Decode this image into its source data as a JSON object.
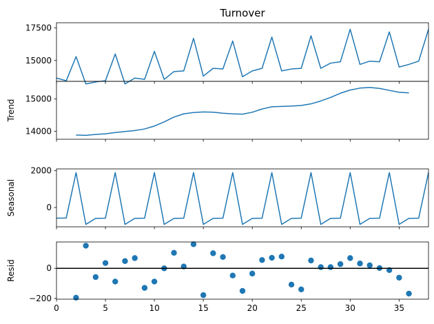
{
  "figure_title": "Turnover",
  "chart_data": [
    {
      "type": "line",
      "ylabel": "",
      "xlim": [
        0,
        38
      ],
      "ylim": [
        13400,
        17900
      ],
      "yticks": [
        17500,
        15000
      ],
      "ytick_labels": [
        "17500",
        "15000"
      ],
      "color": "#1f77b4",
      "series": [
        {
          "x": [
            0,
            1,
            2,
            3,
            4,
            5,
            6,
            7,
            8,
            9,
            10,
            11,
            12,
            13,
            14,
            15,
            16,
            17,
            18,
            19,
            20,
            21,
            22,
            23,
            24,
            25,
            26,
            27,
            28,
            29,
            30,
            31,
            32,
            33,
            34,
            35,
            36,
            37,
            38
          ],
          "values": [
            13650,
            13450,
            15300,
            13200,
            13350,
            13450,
            15500,
            13200,
            13650,
            13550,
            15700,
            13550,
            14150,
            14200,
            16700,
            13800,
            14400,
            14350,
            16500,
            13750,
            14200,
            14400,
            16800,
            14200,
            14350,
            14400,
            16900,
            14400,
            14800,
            14900,
            17400,
            14700,
            14950,
            14900,
            17200,
            14500,
            14700,
            14950,
            17400
          ]
        }
      ]
    },
    {
      "type": "line",
      "ylabel": "Trend",
      "xlim": [
        0,
        38
      ],
      "ylim": [
        13750,
        15550
      ],
      "yticks": [
        15000,
        14000
      ],
      "ytick_labels": [
        "15000",
        "14000"
      ],
      "color": "#1f77b4",
      "series": [
        {
          "x": [
            2,
            3,
            4,
            5,
            6,
            7,
            8,
            9,
            10,
            11,
            12,
            13,
            14,
            15,
            16,
            17,
            18,
            19,
            20,
            21,
            22,
            23,
            24,
            25,
            26,
            27,
            28,
            29,
            30,
            31,
            32,
            33,
            34,
            35,
            36
          ],
          "values": [
            13880,
            13870,
            13900,
            13920,
            13960,
            13990,
            14020,
            14070,
            14160,
            14290,
            14440,
            14540,
            14580,
            14600,
            14590,
            14560,
            14540,
            14530,
            14590,
            14690,
            14760,
            14770,
            14780,
            14800,
            14850,
            14940,
            15050,
            15180,
            15280,
            15340,
            15360,
            15330,
            15270,
            15210,
            15190
          ]
        }
      ]
    },
    {
      "type": "line",
      "ylabel": "Seasonal",
      "xlim": [
        0,
        38
      ],
      "ylim": [
        -1050,
        2100
      ],
      "yticks": [
        2000,
        0
      ],
      "ytick_labels": [
        "2000",
        "0"
      ],
      "color": "#1f77b4",
      "series": [
        {
          "x": [
            0,
            1,
            2,
            3,
            4,
            5,
            6,
            7,
            8,
            9,
            10,
            11,
            12,
            13,
            14,
            15,
            16,
            17,
            18,
            19,
            20,
            21,
            22,
            23,
            24,
            25,
            26,
            27,
            28,
            29,
            30,
            31,
            32,
            33,
            34,
            35,
            36,
            37,
            38
          ],
          "values": [
            -580,
            -570,
            1900,
            -920,
            -590,
            -580,
            1900,
            -920,
            -590,
            -580,
            1900,
            -920,
            -590,
            -580,
            1900,
            -920,
            -590,
            -580,
            1900,
            -920,
            -590,
            -580,
            1900,
            -920,
            -590,
            -580,
            1900,
            -920,
            -590,
            -580,
            1900,
            -920,
            -590,
            -580,
            1900,
            -920,
            -590,
            -580,
            1900
          ]
        }
      ]
    },
    {
      "type": "scatter",
      "ylabel": "Resid",
      "xlim": [
        0,
        38
      ],
      "ylim": [
        -205,
        175
      ],
      "yticks": [
        0,
        -200
      ],
      "ytick_labels": [
        "0",
        "−200"
      ],
      "xticks": [
        0,
        5,
        10,
        15,
        20,
        25,
        30,
        35
      ],
      "xtick_labels": [
        "0",
        "5",
        "10",
        "15",
        "20",
        "25",
        "30",
        "35"
      ],
      "baseline": 0,
      "color": "#1f77b4",
      "series": [
        {
          "x": [
            2,
            3,
            4,
            5,
            6,
            7,
            8,
            9,
            10,
            11,
            12,
            13,
            14,
            15,
            16,
            17,
            18,
            19,
            20,
            21,
            22,
            23,
            24,
            25,
            26,
            27,
            28,
            29,
            30,
            31,
            32,
            33,
            34,
            35,
            36
          ],
          "values": [
            -195,
            150,
            -58,
            35,
            -88,
            48,
            68,
            -130,
            -88,
            0,
            103,
            12,
            160,
            -178,
            100,
            75,
            -48,
            -150,
            -35,
            55,
            70,
            78,
            -108,
            -140,
            52,
            8,
            8,
            28,
            68,
            32,
            20,
            2,
            -12,
            -62,
            -168
          ]
        }
      ]
    }
  ]
}
